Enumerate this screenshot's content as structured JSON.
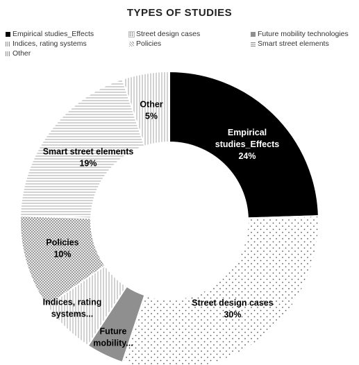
{
  "chart_data": {
    "type": "pie",
    "title": "TYPES OF STUDIES",
    "donut": true,
    "legend_position": "top",
    "categories": [
      "Empirical studies_Effects",
      "Street design cases",
      "Future mobility technologies",
      "Indices, rating systems",
      "Policies",
      "Smart street elements",
      "Other"
    ],
    "values": [
      24,
      30,
      4,
      6,
      10,
      19,
      5
    ],
    "data_labels": [
      [
        "Empirical",
        "studies_Effects",
        "24%"
      ],
      [
        "Street design cases",
        "30%"
      ],
      [
        "Future",
        "mobility..."
      ],
      [
        "Indices, rating",
        "systems..."
      ],
      [
        "Policies",
        "10%"
      ],
      [
        "Smart street elements",
        "19%"
      ],
      [
        "Other",
        "5%"
      ]
    ],
    "fills": [
      "solid-black",
      "dots",
      "solid-gray",
      "vertical-lines",
      "crosshatch",
      "horizontal-lines",
      "vertical-lines"
    ]
  }
}
